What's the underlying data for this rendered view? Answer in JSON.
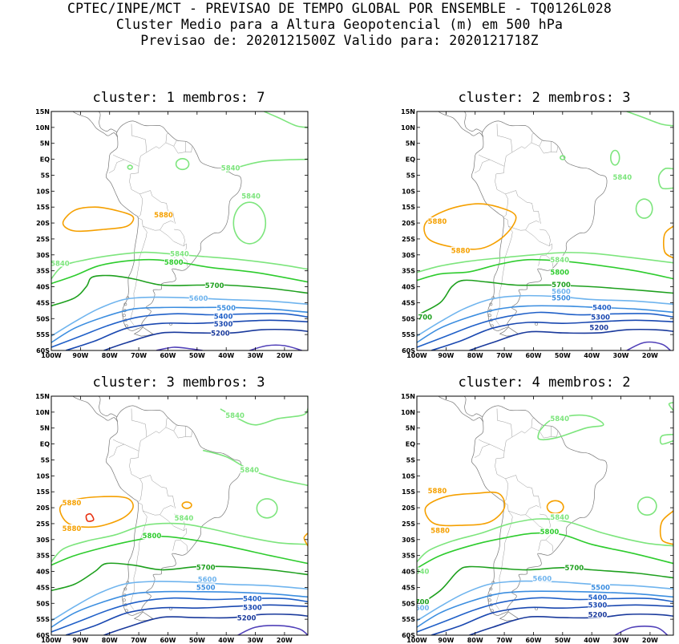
{
  "header": {
    "line1": "CPTEC/INPE/MCT - PREVISAO DE TEMPO GLOBAL POR ENSEMBLE - TQ0126L028",
    "line2": "Cluster Medio para a Altura Geopotencial (m) em 500 hPa",
    "line3": "Previsao de: 2020121500Z   Valido para: 2020121718Z"
  },
  "axes": {
    "lat_labels": [
      "15N",
      "10N",
      "5N",
      "EQ",
      "5S",
      "10S",
      "15S",
      "20S",
      "25S",
      "30S",
      "35S",
      "40S",
      "45S",
      "50S",
      "55S",
      "60S"
    ],
    "lon_labels": [
      "100W",
      "90W",
      "80W",
      "70W",
      "60W",
      "50W",
      "40W",
      "30W",
      "20W"
    ]
  },
  "colors": {
    "c5880": "#f5a000",
    "c5840": "#7de57d",
    "c5800": "#2ecc2e",
    "c5700": "#1ea01e",
    "c5600": "#6fb4ee",
    "c5500": "#3c8ee0",
    "c5400": "#2060c8",
    "c5300": "#1a48b0",
    "c5200": "#1a3a9c",
    "c5100": "#5040b8",
    "c5920": "#e83010",
    "coast": "#777777"
  },
  "panels": [
    {
      "title": "cluster: 1   membros: 7",
      "labels": [
        {
          "text": "5880",
          "level": "c5880",
          "x": -61.5,
          "y": -17.5
        },
        {
          "text": "5840",
          "level": "c5840",
          "x": -38.5,
          "y": -2.8
        },
        {
          "text": "5840",
          "level": "c5840",
          "x": -31.5,
          "y": -11.5
        },
        {
          "text": "5840",
          "level": "c5840",
          "x": -56,
          "y": -29.7
        },
        {
          "text": "5840",
          "level": "c5840",
          "x": -97,
          "y": -32.7
        },
        {
          "text": "5800",
          "level": "c5800",
          "x": -58,
          "y": -32.3
        },
        {
          "text": "5700",
          "level": "c5700",
          "x": -44,
          "y": -39.6
        },
        {
          "text": "5600",
          "level": "c5600",
          "x": -49.5,
          "y": -43.7
        },
        {
          "text": "5500",
          "level": "c5500",
          "x": -40,
          "y": -46.7
        },
        {
          "text": "5400",
          "level": "c5400",
          "x": -41,
          "y": -49.3
        },
        {
          "text": "5300",
          "level": "c5300",
          "x": -41,
          "y": -51.7
        },
        {
          "text": "5200",
          "level": "c5200",
          "x": -42,
          "y": -54.6
        }
      ]
    },
    {
      "title": "cluster: 2   membros: 3",
      "labels": [
        {
          "text": "5880",
          "level": "c5880",
          "x": -93,
          "y": -19.5
        },
        {
          "text": "5880",
          "level": "c5880",
          "x": -85,
          "y": -28.7
        },
        {
          "text": "5840",
          "level": "c5840",
          "x": -29.5,
          "y": -5.7
        },
        {
          "text": "5840",
          "level": "c5840",
          "x": -51,
          "y": -31.5
        },
        {
          "text": "5800",
          "level": "c5800",
          "x": -51,
          "y": -35.5
        },
        {
          "text": "5700",
          "level": "c5700",
          "x": -50.5,
          "y": -39.3
        },
        {
          "text": "5600",
          "level": "c5600",
          "x": -50.5,
          "y": -41.5
        },
        {
          "text": "5500",
          "level": "c5500",
          "x": -50.5,
          "y": -43.5
        },
        {
          "text": "5400",
          "level": "c5400",
          "x": -36.5,
          "y": -46.5
        },
        {
          "text": "5300",
          "level": "c5300",
          "x": -37,
          "y": -49.5
        },
        {
          "text": "5200",
          "level": "c5200",
          "x": -37.5,
          "y": -52.8
        },
        {
          "text": "5700",
          "level": "c5700",
          "x": -98,
          "y": -49.5
        }
      ]
    },
    {
      "title": "cluster: 3   membros: 3",
      "labels": [
        {
          "text": "5840",
          "level": "c5840",
          "x": -37,
          "y": 9.0
        },
        {
          "text": "5840",
          "level": "c5840",
          "x": -32,
          "y": -8.2
        },
        {
          "text": "5880",
          "level": "c5880",
          "x": -93,
          "y": -18.5
        },
        {
          "text": "5880",
          "level": "c5880",
          "x": -93,
          "y": -26.5
        },
        {
          "text": "5840",
          "level": "c5840",
          "x": -54.5,
          "y": -23.3
        },
        {
          "text": "5800",
          "level": "c5800",
          "x": -65.5,
          "y": -28.8
        },
        {
          "text": "5700",
          "level": "c5700",
          "x": -47,
          "y": -38.7
        },
        {
          "text": "5600",
          "level": "c5600",
          "x": -46.5,
          "y": -42.5
        },
        {
          "text": "5500",
          "level": "c5500",
          "x": -47,
          "y": -45.0
        },
        {
          "text": "5400",
          "level": "c5400",
          "x": -31,
          "y": -48.5
        },
        {
          "text": "5300",
          "level": "c5300",
          "x": -31,
          "y": -51.3
        },
        {
          "text": "5200",
          "level": "c5200",
          "x": -33,
          "y": -54.6
        }
      ]
    },
    {
      "title": "cluster: 4   membros: 2",
      "labels": [
        {
          "text": "5840",
          "level": "c5840",
          "x": -51,
          "y": 8.0
        },
        {
          "text": "5880",
          "level": "c5880",
          "x": -93,
          "y": -14.7
        },
        {
          "text": "5880",
          "level": "c5880",
          "x": -92,
          "y": -27.2
        },
        {
          "text": "5840",
          "level": "c5840",
          "x": -51,
          "y": -23.0
        },
        {
          "text": "5800",
          "level": "c5800",
          "x": -54.5,
          "y": -27.5
        },
        {
          "text": "5700",
          "level": "c5700",
          "x": -46,
          "y": -38.8
        },
        {
          "text": "5600",
          "level": "c5600",
          "x": -57,
          "y": -42.3
        },
        {
          "text": "5500",
          "level": "c5500",
          "x": -37,
          "y": -45.0
        },
        {
          "text": "5400",
          "level": "c5400",
          "x": -38,
          "y": -48.2
        },
        {
          "text": "5300",
          "level": "c5300",
          "x": -38,
          "y": -50.6
        },
        {
          "text": "5200",
          "level": "c5200",
          "x": -38,
          "y": -53.6
        },
        {
          "text": "5840",
          "level": "c5840",
          "x": -99,
          "y": -40.0
        },
        {
          "text": "5700",
          "level": "c5700",
          "x": -99,
          "y": -49.5
        },
        {
          "text": "5600",
          "level": "c5600",
          "x": -99,
          "y": -51.5
        }
      ]
    }
  ]
}
